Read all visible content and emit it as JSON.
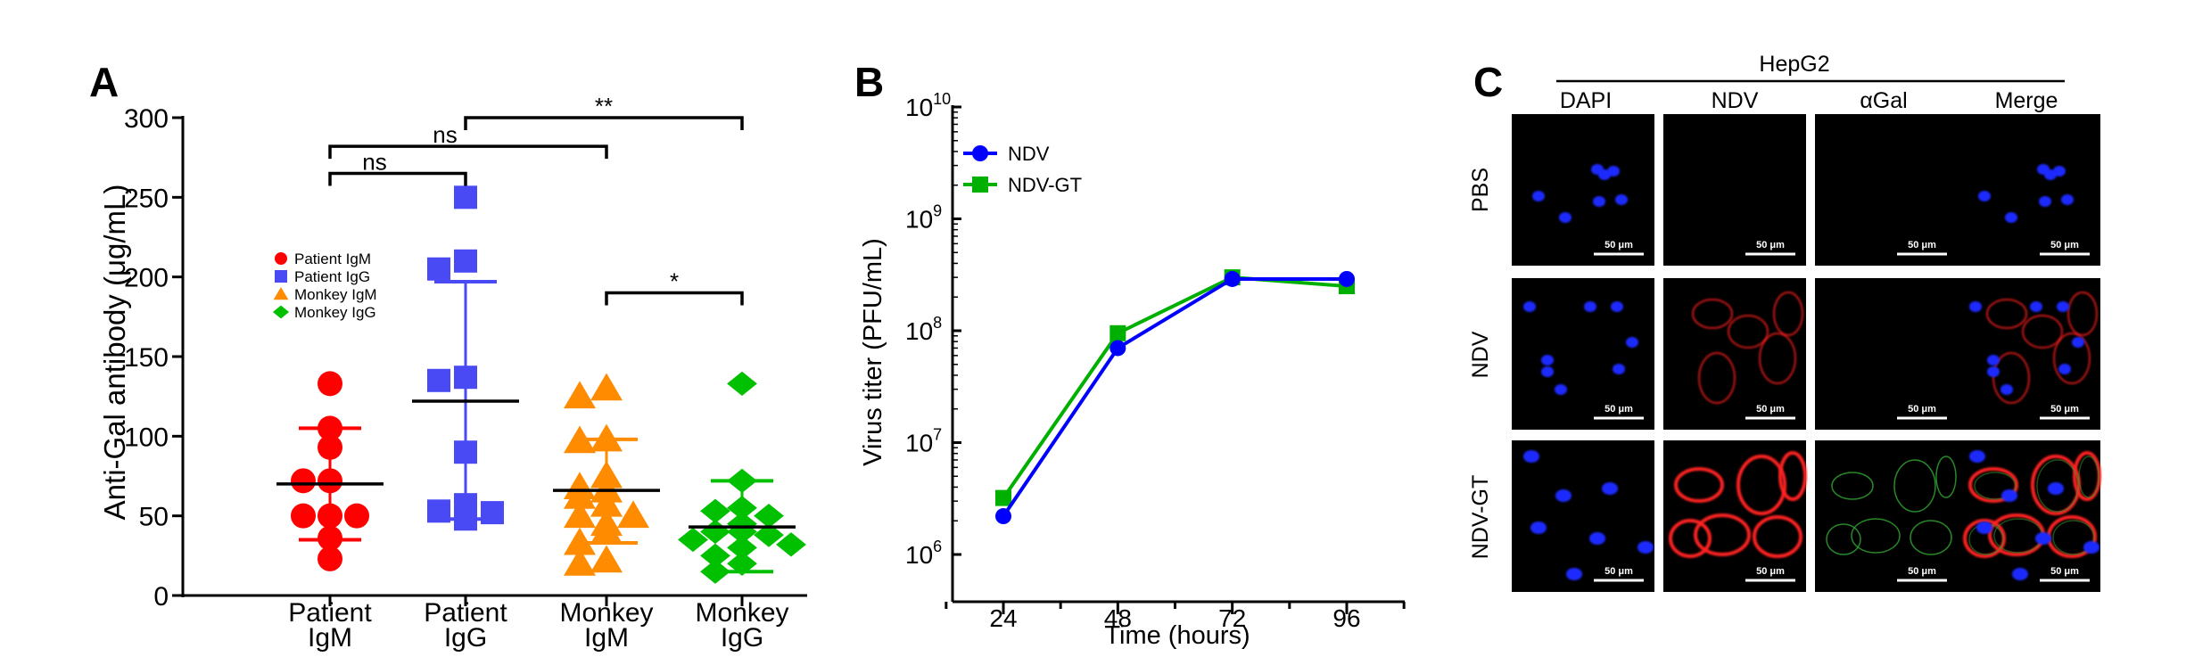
{
  "panels": {
    "a": {
      "letter": "A",
      "chart_data": {
        "type": "scatter",
        "ylabel": "Anti-Gal antibody (μg/mL)",
        "ylim": [
          0,
          300
        ],
        "yticks": [
          0,
          50,
          100,
          150,
          200,
          250,
          300
        ],
        "categories": [
          {
            "line1": "Patient",
            "line2": "IgM"
          },
          {
            "line1": "Patient",
            "line2": "IgG"
          },
          {
            "line1": "Monkey",
            "line2": "IgM"
          },
          {
            "line1": "Monkey",
            "line2": "IgG"
          }
        ],
        "series": [
          {
            "name": "Patient IgM",
            "color": "#ff0000",
            "marker": "circle",
            "values": [
              133,
              105,
              93,
              72,
              72,
              50,
              50,
              50,
              36,
              23
            ],
            "mean": 70,
            "sd_low": 35,
            "sd_high": 105
          },
          {
            "name": "Patient IgG",
            "color": "#4a4af5",
            "marker": "square",
            "values": [
              250,
              210,
              205,
              137,
              135,
              90,
              57,
              53,
              52,
              48
            ],
            "mean": 122,
            "sd_low": 48,
            "sd_high": 197
          },
          {
            "name": "Monkey IgM",
            "color": "#ff8c00",
            "marker": "triangle",
            "values": [
              130,
              125,
              98,
              97,
              75,
              68,
              66,
              62,
              57,
              50,
              50,
              45,
              40,
              33,
              22,
              20
            ],
            "mean": 66,
            "sd_low": 33,
            "sd_high": 98
          },
          {
            "name": "Monkey IgG",
            "color": "#00c000",
            "marker": "diamond",
            "values": [
              133,
              72,
              55,
              53,
              50,
              45,
              40,
              40,
              38,
              35,
              32,
              30,
              25,
              20,
              15
            ],
            "mean": 43,
            "sd_low": 15,
            "sd_high": 72
          }
        ],
        "significance": [
          {
            "from": 0,
            "to": 1,
            "label": "ns",
            "y": 265
          },
          {
            "from": 0,
            "to": 2,
            "label": "ns",
            "y": 282
          },
          {
            "from": 1,
            "to": 3,
            "label": "**",
            "y": 300
          },
          {
            "from": 2,
            "to": 3,
            "label": "*",
            "y": 190
          }
        ]
      }
    },
    "b": {
      "letter": "B",
      "chart_data": {
        "type": "line",
        "xlabel": "Time (hours)",
        "ylabel": "Virus titer (PFU/mL)",
        "x": [
          24,
          48,
          72,
          96
        ],
        "y_scale": "log",
        "ylim": [
          1000000,
          10000000000
        ],
        "ytick_base": "10",
        "ytick_exponents": [
          "6",
          "7",
          "8",
          "9",
          "10"
        ],
        "legend_position": "top-left",
        "series": [
          {
            "name": "NDV",
            "color": "#0000ff",
            "marker": "circle",
            "values": [
              2200000,
              70000000,
              290000000,
              290000000
            ]
          },
          {
            "name": "NDV-GT",
            "color": "#00b000",
            "marker": "square",
            "values": [
              3200000,
              95000000,
              300000000,
              250000000
            ]
          }
        ]
      }
    },
    "c": {
      "letter": "C",
      "group_label": "HepG2",
      "columns": [
        "DAPI",
        "NDV",
        "αGal",
        "Merge"
      ],
      "rows": [
        "PBS",
        "NDV",
        "NDV-GT"
      ],
      "scale_bar": "50 μm"
    }
  }
}
